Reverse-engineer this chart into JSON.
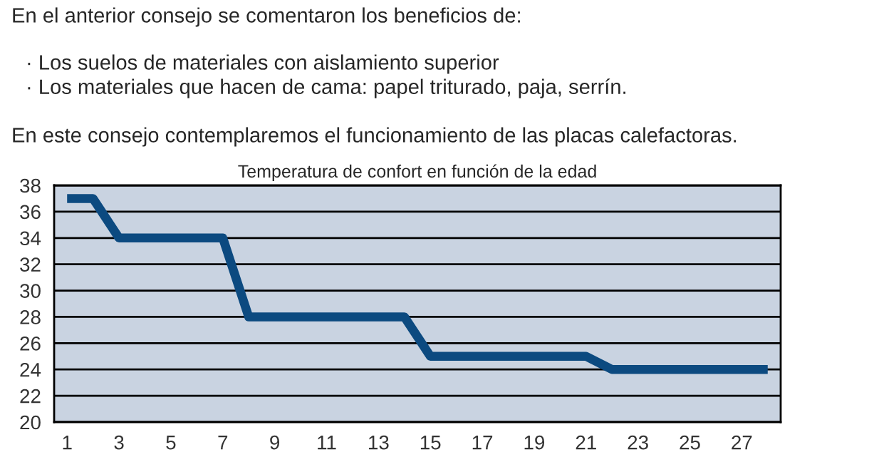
{
  "chart_data": {
    "type": "line",
    "title": "Temperatura de confort en función de la edad",
    "annotations": [
      "En el anterior consejo se comentaron los beneficios de:",
      "· Los suelos de materiales con aislamiento superior",
      "· Los materiales que hacen de cama: papel triturado, paja, serrín.",
      "En este consejo contemplaremos el funcionamiento de las placas calefactoras."
    ],
    "categories": [
      "1",
      null,
      "3",
      null,
      "5",
      null,
      "7",
      null,
      "9",
      null,
      "11",
      null,
      "13",
      null,
      "15",
      null,
      "17",
      null,
      "19",
      null,
      "21",
      null,
      "23",
      null,
      "25",
      null,
      "27",
      null
    ],
    "series": [
      {
        "color": "#0c4a80",
        "values": [
          37,
          37,
          34,
          34,
          34,
          34,
          34,
          28,
          28,
          28,
          28,
          28,
          28,
          28,
          25,
          25,
          25,
          25,
          25,
          25,
          25,
          24,
          24,
          24,
          24,
          24,
          24,
          24
        ]
      }
    ],
    "ylim": [
      20,
      38
    ],
    "yticks": [
      20,
      22,
      24,
      26,
      28,
      30,
      32,
      34,
      36,
      38
    ],
    "grid": "y",
    "marker": "none",
    "line_style": "solid",
    "legend": false
  }
}
